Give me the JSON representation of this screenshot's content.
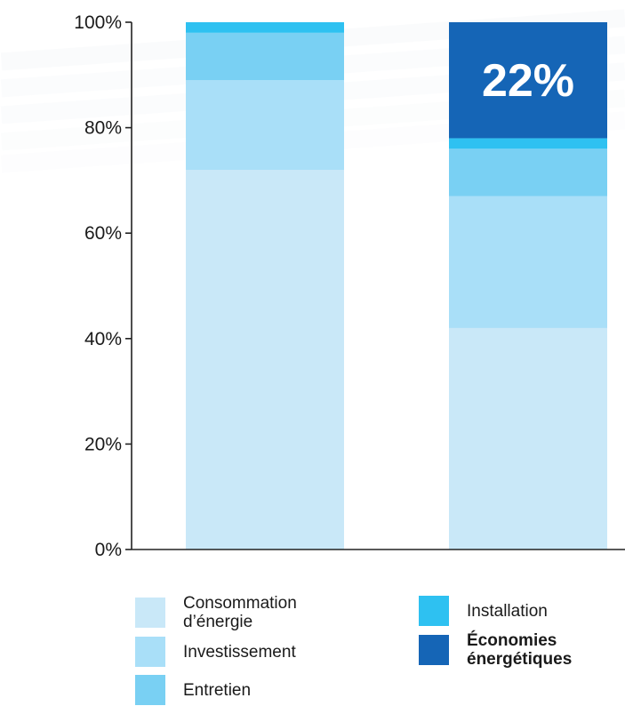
{
  "chart_data": {
    "type": "bar",
    "stacked": true,
    "categories": [
      "",
      ""
    ],
    "series": [
      {
        "name": "Consommation\nd’énergie",
        "color": "#c9e8f8",
        "values": [
          72,
          42
        ]
      },
      {
        "name": "Investissement",
        "color": "#a9dff8",
        "values": [
          17,
          25
        ]
      },
      {
        "name": "Entretien",
        "color": "#79d0f3",
        "values": [
          9,
          9
        ]
      },
      {
        "name": "Installation",
        "color": "#2ec1f1",
        "values": [
          2,
          2
        ]
      },
      {
        "name": "Économies\nénergétiques",
        "color": "#1565b6",
        "values": [
          0,
          22
        ]
      }
    ],
    "y_ticks": [
      "0%",
      "20%",
      "40%",
      "60%",
      "80%",
      "100%"
    ],
    "ylim": [
      0,
      100
    ],
    "annotation": {
      "text": "22%",
      "bar_index": 1,
      "series_index": 4
    },
    "legend_placement": "bottom",
    "grid": false
  },
  "legend": {
    "items": [
      {
        "label": "Consommation\nd’énergie",
        "color": "#c9e8f8",
        "bold": false
      },
      {
        "label": "Investissement",
        "color": "#a9dff8",
        "bold": false
      },
      {
        "label": "Entretien",
        "color": "#79d0f3",
        "bold": false
      },
      {
        "label": "Installation",
        "color": "#2ec1f1",
        "bold": false
      },
      {
        "label": "Économies\nénergétiques",
        "color": "#1565b6",
        "bold": true
      }
    ]
  }
}
